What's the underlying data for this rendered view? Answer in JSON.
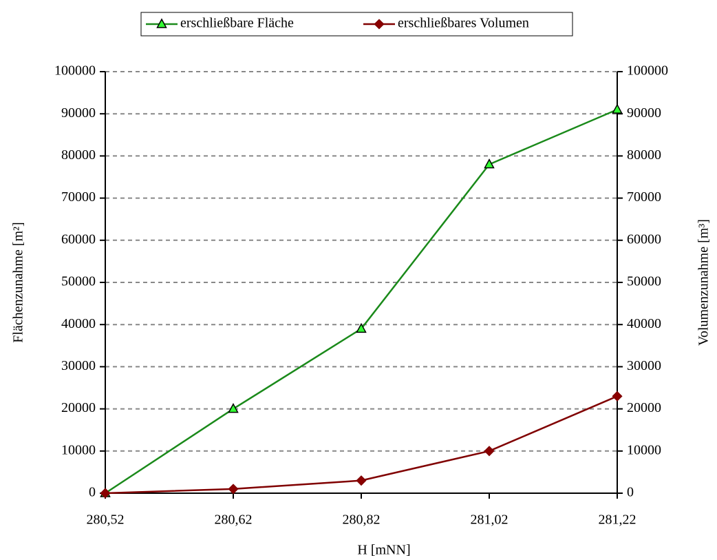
{
  "chart_data": {
    "type": "line",
    "xlabel": "H [mNN]",
    "ylabel": "Flächenzunahme [m²]",
    "y2label": "Volumenzunahme [m³]",
    "categories": [
      "280,52",
      "280,62",
      "280,82",
      "281,02",
      "281,22"
    ],
    "series": [
      {
        "name": "erschließbare Fläche",
        "color": "#1a8a1a",
        "marker_color": "#33ff33",
        "marker": "triangle",
        "values": [
          0,
          20000,
          39000,
          78000,
          91000
        ]
      },
      {
        "name": "erschließbares Volumen",
        "color": "#800000",
        "marker_color": "#8b0000",
        "marker": "diamond",
        "axis": "y2",
        "values": [
          0,
          1000,
          3000,
          10000,
          23000
        ]
      }
    ],
    "ylim": [
      0,
      100000
    ],
    "yticks": [
      0,
      10000,
      20000,
      30000,
      40000,
      50000,
      60000,
      70000,
      80000,
      90000,
      100000
    ],
    "y2lim": [
      0,
      100000
    ],
    "y2ticks": [
      0,
      10000,
      20000,
      30000,
      40000,
      50000,
      60000,
      70000,
      80000,
      90000,
      100000
    ],
    "grid": true,
    "legend": "top"
  }
}
